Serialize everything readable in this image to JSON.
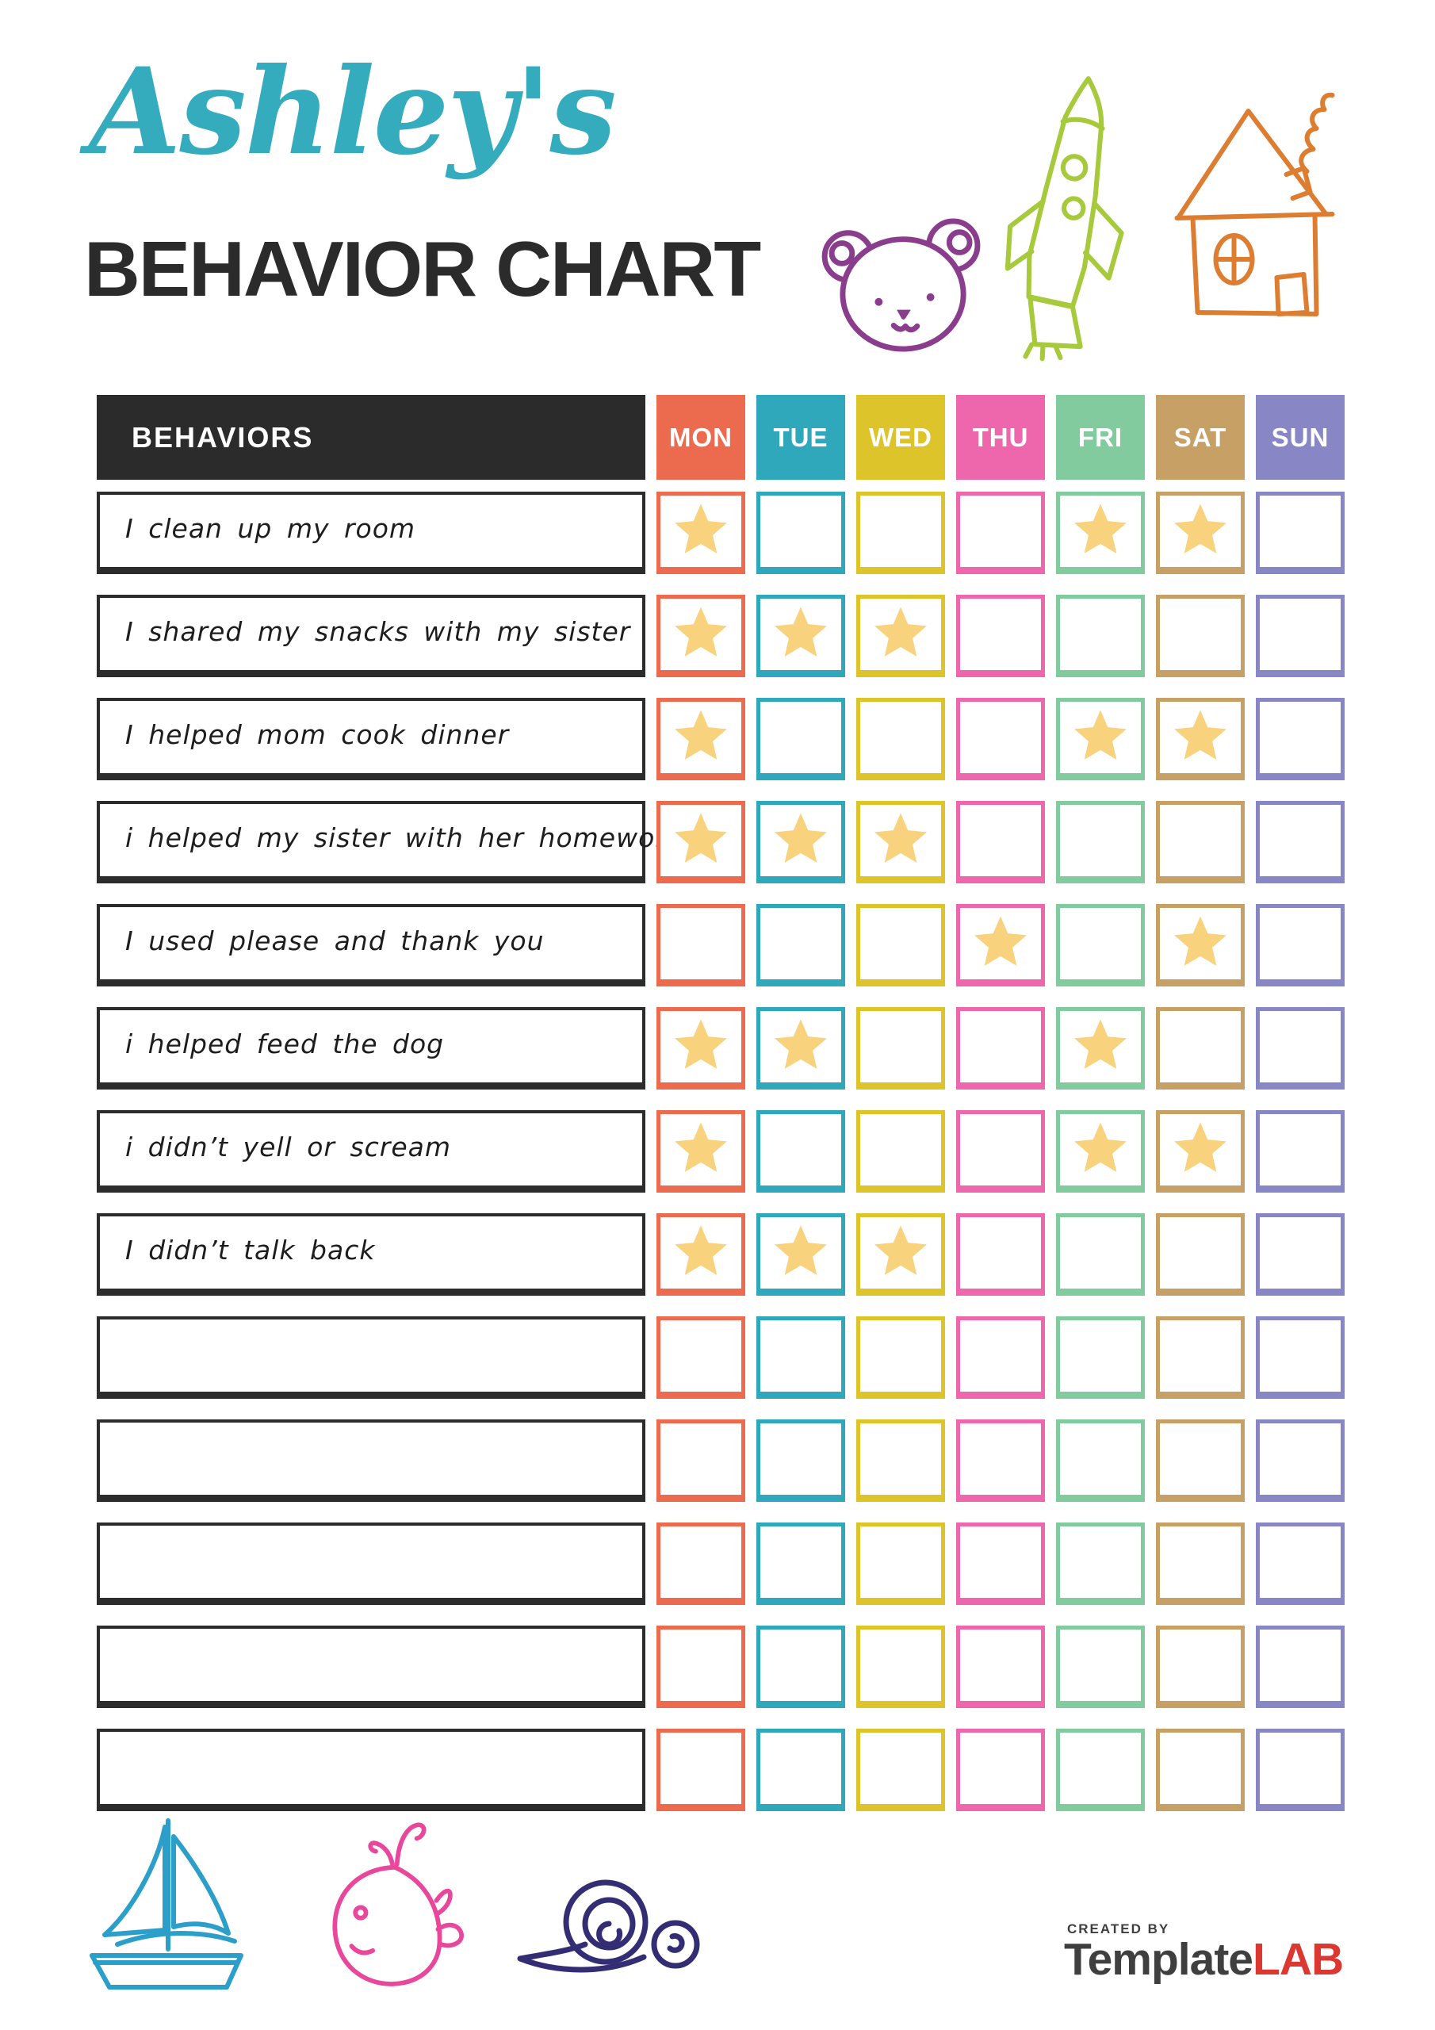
{
  "header": {
    "owner_name": "Ashley's",
    "title": "BEHAVIOR CHART",
    "owner_color": "#35acbe",
    "title_color": "#2b2b2b"
  },
  "doodles": {
    "bear_color": "#8a3d8c",
    "rocket_color": "#a6ca3b",
    "house_color": "#dd7d31",
    "sailboat_color": "#2b9fc9",
    "whale_color": "#e8479b",
    "snail_color": "#332d74"
  },
  "table": {
    "behaviors_header": "BEHAVIORS",
    "behaviors_header_bg": "#2b2b2b",
    "behaviors_header_text_color": "#ffffff",
    "row_border_color": "#2c2c2c",
    "star_color": "#f8d27c",
    "days": [
      {
        "label": "MON",
        "color": "#ec6b4f"
      },
      {
        "label": "TUE",
        "color": "#2fa8bc"
      },
      {
        "label": "WED",
        "color": "#dcc42a"
      },
      {
        "label": "THU",
        "color": "#ee67ac"
      },
      {
        "label": "FRI",
        "color": "#82cb9e"
      },
      {
        "label": "SAT",
        "color": "#c7a066"
      },
      {
        "label": "SUN",
        "color": "#8886c4"
      }
    ],
    "rows": [
      {
        "behavior": "I clean up my room",
        "stars": [
          1,
          0,
          0,
          0,
          1,
          1,
          0
        ]
      },
      {
        "behavior": "I shared my snacks with my sister",
        "stars": [
          1,
          1,
          1,
          0,
          0,
          0,
          0
        ]
      },
      {
        "behavior": "I helped mom cook dinner",
        "stars": [
          1,
          0,
          0,
          0,
          1,
          1,
          0
        ]
      },
      {
        "behavior": "i helped my sister with her homework",
        "stars": [
          1,
          1,
          1,
          0,
          0,
          0,
          0
        ]
      },
      {
        "behavior": "I used please and thank you",
        "stars": [
          0,
          0,
          0,
          1,
          0,
          1,
          0
        ]
      },
      {
        "behavior": "i helped feed the dog",
        "stars": [
          1,
          1,
          0,
          0,
          1,
          0,
          0
        ]
      },
      {
        "behavior": "i didn’t yell or scream",
        "stars": [
          1,
          0,
          0,
          0,
          1,
          1,
          0
        ]
      },
      {
        "behavior": "I didn’t talk back",
        "stars": [
          1,
          1,
          1,
          0,
          0,
          0,
          0
        ]
      },
      {
        "behavior": "",
        "stars": [
          0,
          0,
          0,
          0,
          0,
          0,
          0
        ]
      },
      {
        "behavior": "",
        "stars": [
          0,
          0,
          0,
          0,
          0,
          0,
          0
        ]
      },
      {
        "behavior": "",
        "stars": [
          0,
          0,
          0,
          0,
          0,
          0,
          0
        ]
      },
      {
        "behavior": "",
        "stars": [
          0,
          0,
          0,
          0,
          0,
          0,
          0
        ]
      },
      {
        "behavior": "",
        "stars": [
          0,
          0,
          0,
          0,
          0,
          0,
          0
        ]
      }
    ]
  },
  "footer": {
    "created_by": "CREATED BY",
    "brand_gray": "Template",
    "brand_red": "LAB",
    "brand_gray_color": "#3f3f3f",
    "brand_red_color": "#dc3832"
  }
}
